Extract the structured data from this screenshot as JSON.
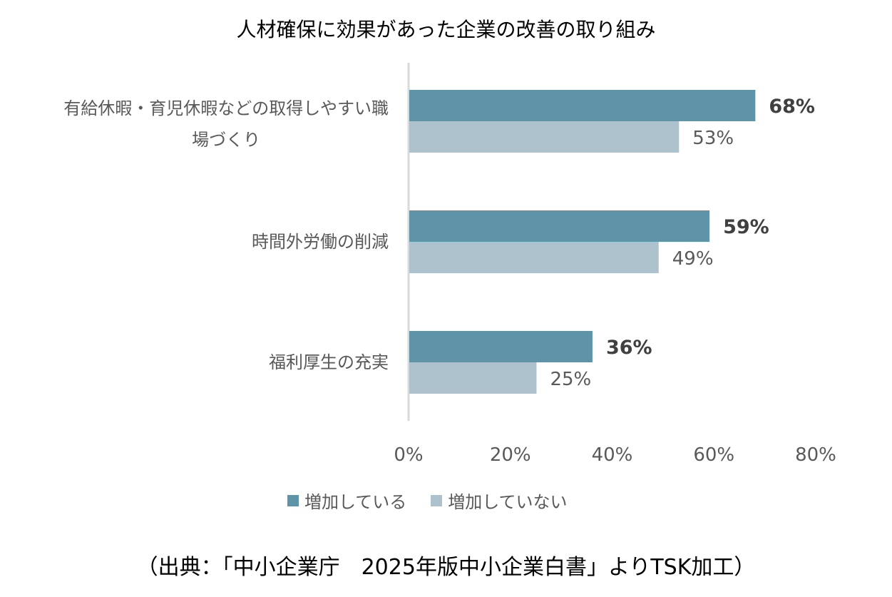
{
  "chart_data": {
    "type": "bar",
    "orientation": "horizontal",
    "title": "人材確保に効果があった企業の改善の取り組み",
    "categories": [
      "有給休暇・育児休暇などの取得しやすい職場づくり",
      "時間外労働の削減",
      "福利厚生の充実"
    ],
    "category_lines": [
      [
        "有給休暇・育児休暇などの取得しやすい職",
        "場づくり"
      ],
      [
        "時間外労働の削減"
      ],
      [
        "福利厚生の充実"
      ]
    ],
    "series": [
      {
        "name": "増加している",
        "values": [
          68,
          59,
          36
        ],
        "labels": [
          "68%",
          "59%",
          "36%"
        ],
        "color": "#5f94a8"
      },
      {
        "name": "増加していない",
        "values": [
          53,
          49,
          25
        ],
        "labels": [
          "53%",
          "49%",
          "25%"
        ],
        "color": "#adc2cc"
      }
    ],
    "x_ticks": [
      "0%",
      "20%",
      "40%",
      "60%",
      "80%"
    ],
    "xlim": [
      0,
      80
    ],
    "legend_position": "bottom",
    "grid": false
  },
  "source_note": "（出典：「中小企業庁　2025年版中小企業白書」よりTSK加工）"
}
